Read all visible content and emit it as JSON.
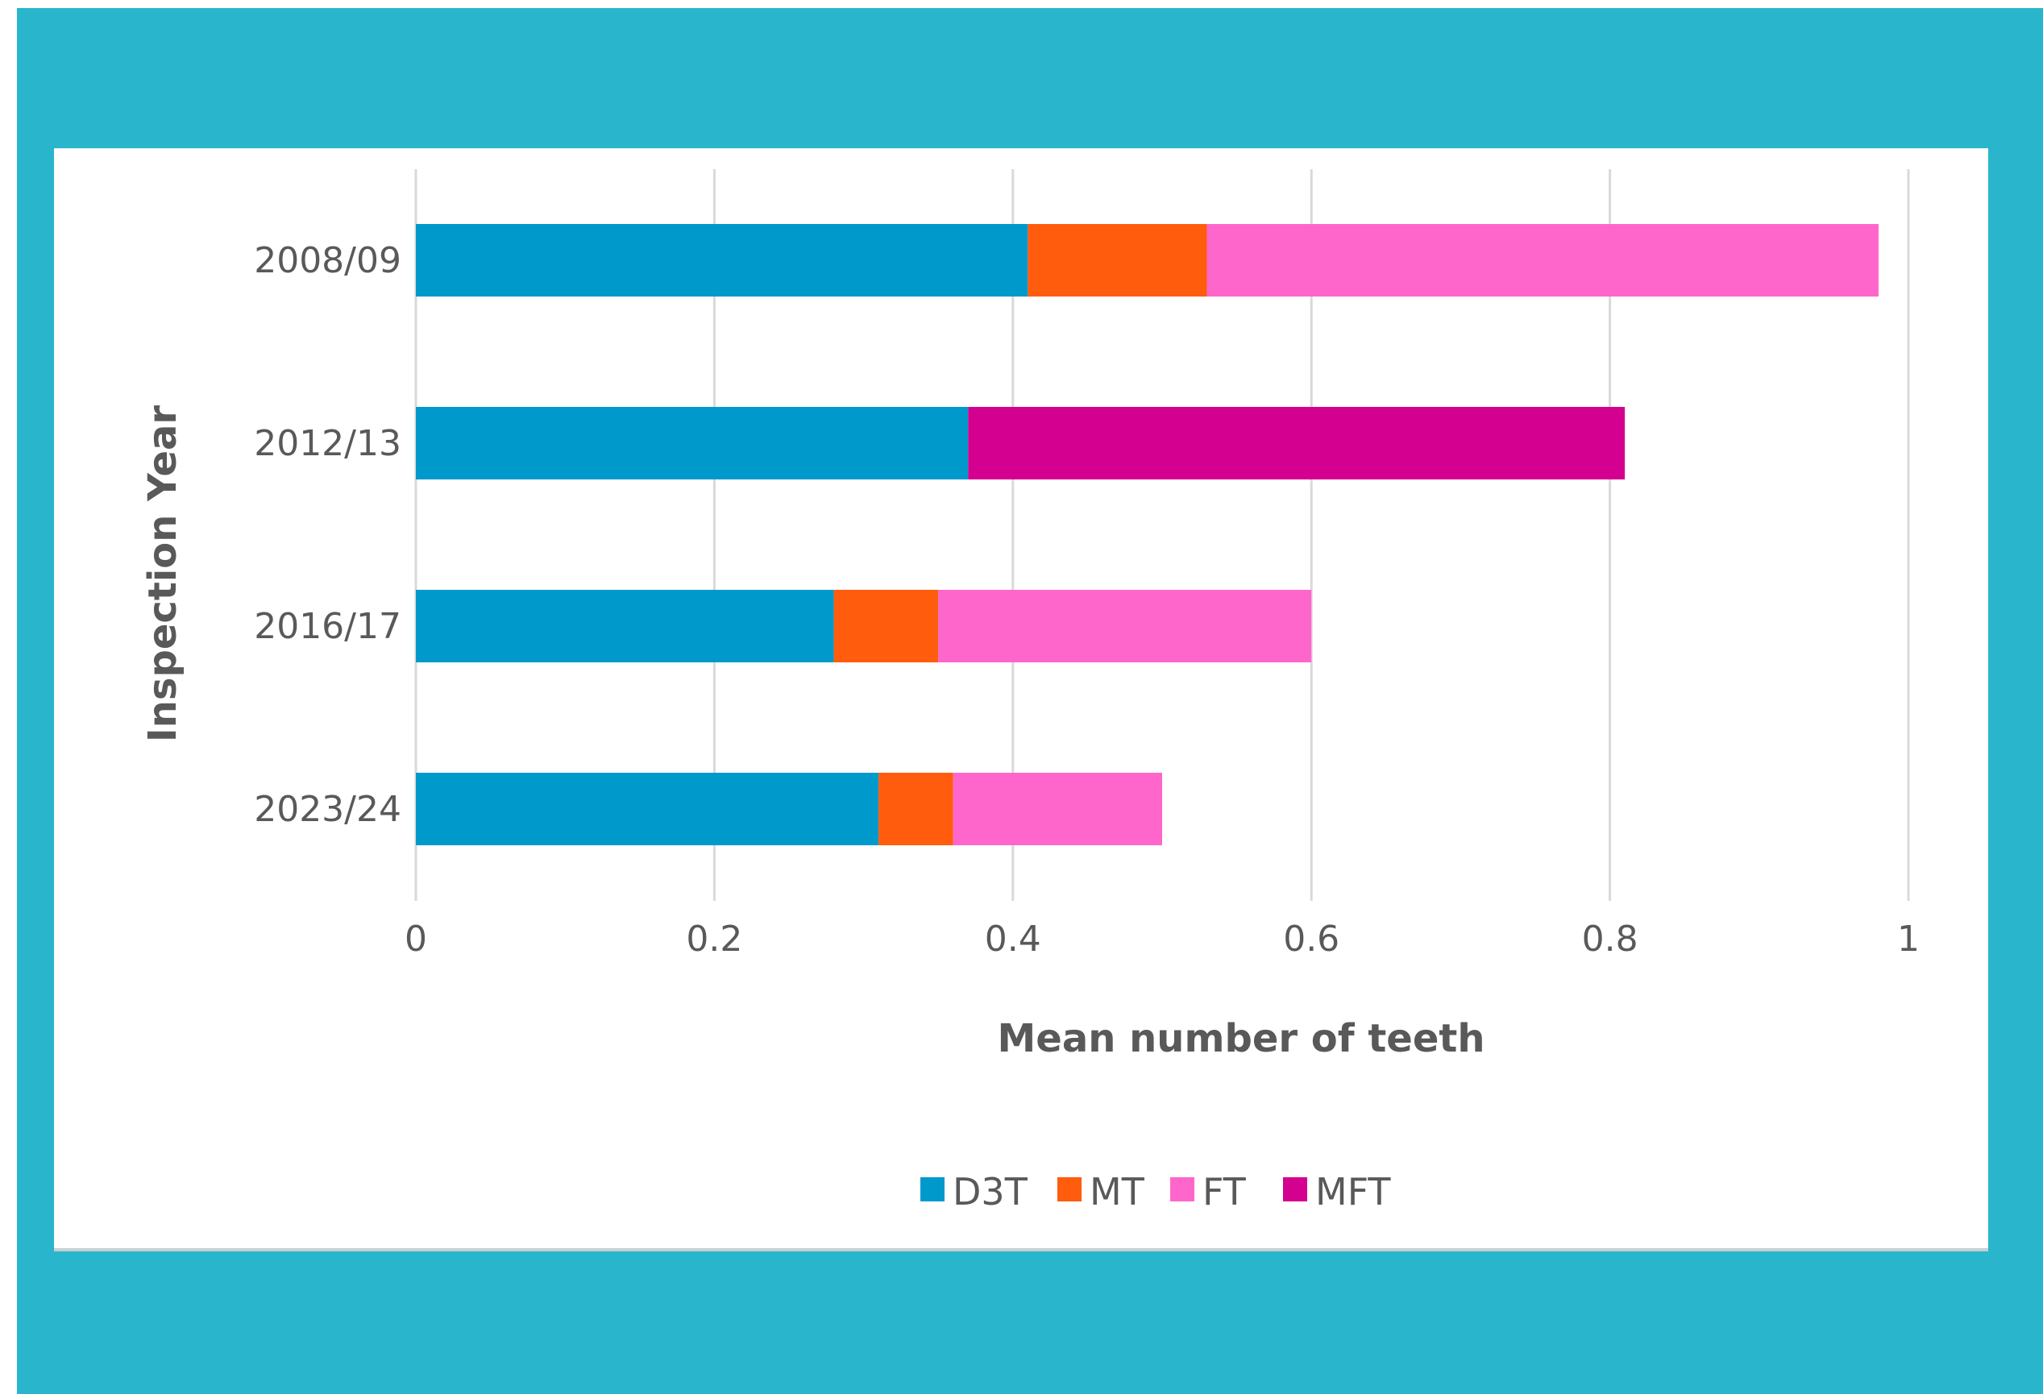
{
  "chart_data": {
    "type": "bar",
    "orientation": "horizontal",
    "stacked": true,
    "categories": [
      "2008/09",
      "2012/13",
      "2016/17",
      "2023/24"
    ],
    "series": [
      {
        "name": "D3T",
        "color": "#0099cc",
        "values": [
          0.41,
          0.37,
          0.28,
          0.31
        ]
      },
      {
        "name": "MT",
        "color": "#ff5c0d",
        "values": [
          0.12,
          0,
          0.07,
          0.05
        ]
      },
      {
        "name": "FT",
        "color": "#ff66cc",
        "values": [
          0.45,
          0,
          0.25,
          0.14
        ]
      },
      {
        "name": "MFT",
        "color": "#d4008f",
        "values": [
          0,
          0.44,
          0,
          0
        ]
      }
    ],
    "title": "",
    "xlabel": "Mean number of teeth",
    "ylabel": "Inspection Year",
    "xlim": [
      0,
      1
    ],
    "xticks": [
      "0",
      "0.2",
      "0.4",
      "0.6",
      "0.8",
      "1"
    ],
    "grid": "vertical",
    "legend_position": "bottom"
  }
}
